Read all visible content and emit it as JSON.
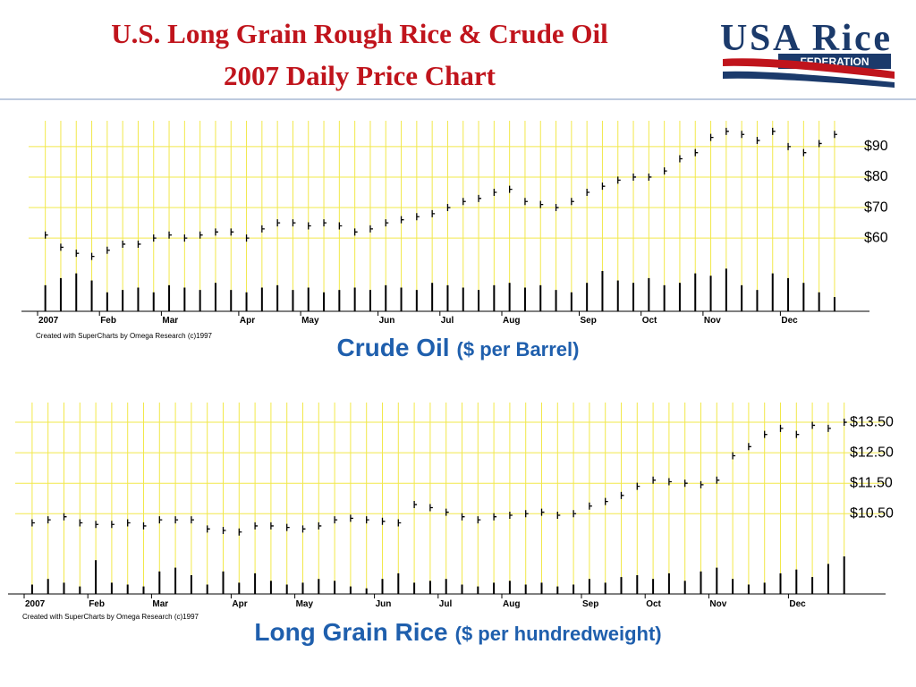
{
  "title_lines": [
    "U.S. Long Grain Rough Rice & Crude Oil",
    "2007 Daily Price Chart"
  ],
  "logo": {
    "name": "USA Rice",
    "subtitle": "FEDERATION"
  },
  "chart_data": [
    {
      "type": "price-volume",
      "caption": "Crude Oil",
      "caption_unit": "($ per Barrel)",
      "footnote": "Created with SuperCharts by Omega Research (c)1997",
      "categories": [
        "2007",
        null,
        null,
        null,
        "Feb",
        null,
        null,
        null,
        "Mar",
        null,
        null,
        null,
        null,
        "Apr",
        null,
        null,
        null,
        "May",
        null,
        null,
        null,
        null,
        "Jun",
        null,
        null,
        null,
        "Jul",
        null,
        null,
        null,
        "Aug",
        null,
        null,
        null,
        null,
        "Sep",
        null,
        null,
        null,
        "Oct",
        null,
        null,
        null,
        "Nov",
        null,
        null,
        null,
        null,
        "Dec",
        null,
        null,
        null
      ],
      "series": [
        {
          "color": "#000000",
          "values": [
            61,
            57,
            55,
            54,
            56,
            58,
            58,
            60,
            61,
            60,
            61,
            62,
            62,
            60,
            63,
            65,
            65,
            64,
            65,
            64,
            62,
            63,
            65,
            66,
            67,
            68,
            70,
            72,
            73,
            75,
            76,
            72,
            71,
            70,
            72,
            75,
            77,
            79,
            80,
            80,
            82,
            86,
            88,
            93,
            95,
            94,
            92,
            95,
            90,
            88,
            91,
            94
          ]
        }
      ],
      "volume": {
        "color": "#000000",
        "values": [
          55,
          70,
          80,
          65,
          40,
          45,
          50,
          40,
          55,
          50,
          45,
          60,
          45,
          40,
          50,
          55,
          45,
          50,
          40,
          45,
          50,
          45,
          55,
          50,
          45,
          60,
          55,
          50,
          45,
          55,
          60,
          50,
          55,
          45,
          40,
          60,
          85,
          65,
          60,
          70,
          55,
          60,
          80,
          75,
          90,
          55,
          45,
          80,
          70,
          60,
          40,
          30
        ],
        "ylim": [
          0,
          100
        ]
      },
      "ylim": [
        53,
        97
      ],
      "yticks": [
        {
          "value": 60,
          "label": "$60"
        },
        {
          "value": 70,
          "label": "$70"
        },
        {
          "value": 80,
          "label": "$80"
        },
        {
          "value": 90,
          "label": "$90"
        }
      ],
      "grid": true
    },
    {
      "type": "price-volume",
      "caption": "Long Grain Rice",
      "caption_unit": "($ per hundredweight)",
      "footnote": "Created with SuperCharts by Omega Research (c)1997",
      "categories": [
        "2007",
        null,
        null,
        null,
        "Feb",
        null,
        null,
        null,
        "Mar",
        null,
        null,
        null,
        null,
        "Apr",
        null,
        null,
        null,
        "May",
        null,
        null,
        null,
        null,
        "Jun",
        null,
        null,
        null,
        "Jul",
        null,
        null,
        null,
        "Aug",
        null,
        null,
        null,
        null,
        "Sep",
        null,
        null,
        null,
        "Oct",
        null,
        null,
        null,
        "Nov",
        null,
        null,
        null,
        null,
        "Dec",
        null,
        null,
        null
      ],
      "series": [
        {
          "color": "#000000",
          "values": [
            10.2,
            10.3,
            10.4,
            10.2,
            10.15,
            10.15,
            10.2,
            10.1,
            10.3,
            10.3,
            10.3,
            10.0,
            9.95,
            9.9,
            10.1,
            10.1,
            10.05,
            10.0,
            10.1,
            10.3,
            10.35,
            10.3,
            10.25,
            10.2,
            10.8,
            10.7,
            10.55,
            10.4,
            10.3,
            10.4,
            10.45,
            10.5,
            10.55,
            10.45,
            10.5,
            10.75,
            10.9,
            11.1,
            11.4,
            11.6,
            11.55,
            11.5,
            11.45,
            11.6,
            12.4,
            12.7,
            13.1,
            13.3,
            13.1,
            13.4,
            13.3,
            13.5
          ]
        }
      ],
      "volume": {
        "color": "#000000",
        "values": [
          25,
          40,
          30,
          20,
          90,
          30,
          25,
          20,
          60,
          70,
          50,
          25,
          60,
          30,
          55,
          35,
          25,
          30,
          40,
          35,
          20,
          15,
          40,
          55,
          30,
          35,
          40,
          25,
          20,
          30,
          35,
          25,
          30,
          20,
          25,
          40,
          30,
          45,
          50,
          40,
          55,
          35,
          60,
          70,
          40,
          25,
          30,
          55,
          65,
          45,
          80,
          100
        ],
        "ylim": [
          0,
          100
        ]
      },
      "ylim": [
        9.1,
        14.0
      ],
      "yticks": [
        {
          "value": 10.5,
          "label": "$10.50"
        },
        {
          "value": 11.5,
          "label": "$11.50"
        },
        {
          "value": 12.5,
          "label": "$12.50"
        },
        {
          "value": 13.5,
          "label": "$13.50"
        }
      ],
      "grid": true
    }
  ]
}
